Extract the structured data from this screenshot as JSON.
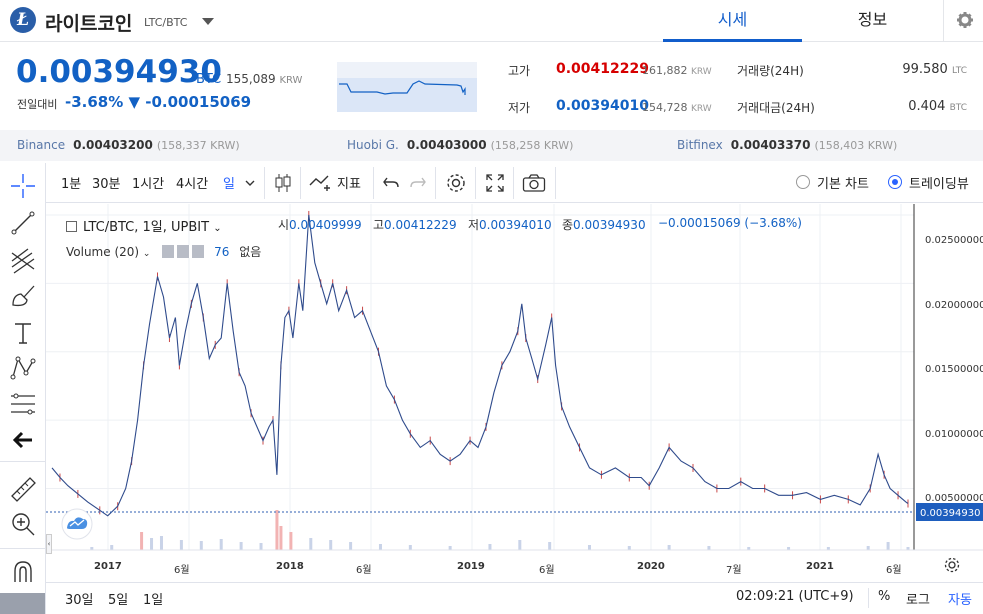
{
  "header": {
    "coin_name": "라이트코인",
    "pair": "LTC/BTC",
    "tabs": [
      {
        "label": "시세"
      },
      {
        "label": "정보"
      }
    ]
  },
  "price": {
    "current": "0.00394930",
    "unit": "BTC",
    "krw_value": "155,089",
    "krw_unit": "KRW",
    "change_label": "전일대비",
    "change_pct": "-3.68%",
    "change_abs": "▼ -0.00015069"
  },
  "stats": {
    "high_label": "고가",
    "high_value": "0.00412229",
    "high_krw": "161,882",
    "low_label": "저가",
    "low_value": "0.00394010",
    "low_krw": "154,728",
    "krw_unit": "KRW",
    "volume_label": "거래량(24H)",
    "volume_value": "99.580",
    "volume_unit": "LTC",
    "amount_label": "거래대금(24H)",
    "amount_value": "0.404",
    "amount_unit": "BTC"
  },
  "exchanges": [
    {
      "name": "Binance",
      "price": "0.00403200",
      "krw": "(158,337 KRW)"
    },
    {
      "name": "Huobi G.",
      "price": "0.00403000",
      "krw": "(158,258 KRW)"
    },
    {
      "name": "Bitfinex",
      "price": "0.00403370",
      "krw": "(158,403 KRW)"
    }
  ],
  "toolbar": {
    "intervals": [
      "1분",
      "30분",
      "1시간",
      "4시간",
      "일"
    ],
    "indicators": "지표",
    "basic_chart": "기본 차트",
    "tradingview": "트레이딩뷰",
    "selected_view": "트레이딩뷰"
  },
  "legend": {
    "symbol": "LTC/BTC, 1일, UPBIT",
    "o_label": "시",
    "o": "0.00409999",
    "h_label": "고",
    "h": "0.00412229",
    "l_label": "저",
    "l": "0.00394010",
    "c_label": "종",
    "c": "0.00394930",
    "chg": "−0.00015069 (−3.68%)",
    "volume_label": "Volume (20)",
    "volume_value": "76",
    "volume_none": "없음"
  },
  "chart_data": {
    "type": "line",
    "title": "",
    "y_ticks": [
      "0.02500000",
      "0.02000000",
      "0.01500000",
      "0.01000000",
      "0.00500000"
    ],
    "last_price_label": "0.00394930",
    "x_ticks": [
      "2017",
      "6월",
      "2018",
      "6월",
      "2019",
      "6월",
      "2020",
      "7월",
      "2021",
      "6월"
    ],
    "ylim": [
      0.0005,
      0.0258
    ],
    "series": [
      {
        "values": [
          [
            0,
            0.0065
          ],
          [
            8,
            0.0058
          ],
          [
            16,
            0.0052
          ],
          [
            26,
            0.0046
          ],
          [
            36,
            0.004
          ],
          [
            48,
            0.0034
          ],
          [
            56,
            0.003
          ],
          [
            66,
            0.0037
          ],
          [
            74,
            0.005
          ],
          [
            80,
            0.007
          ],
          [
            86,
            0.01
          ],
          [
            92,
            0.014
          ],
          [
            98,
            0.017
          ],
          [
            106,
            0.0205
          ],
          [
            112,
            0.019
          ],
          [
            118,
            0.016
          ],
          [
            124,
            0.0175
          ],
          [
            128,
            0.014
          ],
          [
            134,
            0.0165
          ],
          [
            140,
            0.0185
          ],
          [
            146,
            0.02
          ],
          [
            152,
            0.0175
          ],
          [
            158,
            0.0145
          ],
          [
            164,
            0.0155
          ],
          [
            170,
            0.016
          ],
          [
            176,
            0.02
          ],
          [
            182,
            0.0165
          ],
          [
            188,
            0.0135
          ],
          [
            194,
            0.0125
          ],
          [
            200,
            0.0105
          ],
          [
            206,
            0.0095
          ],
          [
            212,
            0.0085
          ],
          [
            218,
            0.0095
          ],
          [
            222,
            0.01
          ],
          [
            226,
            0.006
          ],
          [
            230,
            0.014
          ],
          [
            234,
            0.0175
          ],
          [
            238,
            0.018
          ],
          [
            242,
            0.016
          ],
          [
            248,
            0.02
          ],
          [
            252,
            0.018
          ],
          [
            258,
            0.025
          ],
          [
            264,
            0.0215
          ],
          [
            270,
            0.02
          ],
          [
            276,
            0.0185
          ],
          [
            282,
            0.02
          ],
          [
            288,
            0.018
          ],
          [
            296,
            0.0195
          ],
          [
            304,
            0.0175
          ],
          [
            312,
            0.018
          ],
          [
            320,
            0.0165
          ],
          [
            328,
            0.015
          ],
          [
            336,
            0.0125
          ],
          [
            344,
            0.0115
          ],
          [
            352,
            0.01
          ],
          [
            360,
            0.009
          ],
          [
            370,
            0.008
          ],
          [
            380,
            0.0085
          ],
          [
            390,
            0.0075
          ],
          [
            400,
            0.007
          ],
          [
            410,
            0.0075
          ],
          [
            420,
            0.0085
          ],
          [
            428,
            0.008
          ],
          [
            436,
            0.0095
          ],
          [
            444,
            0.012
          ],
          [
            452,
            0.014
          ],
          [
            460,
            0.015
          ],
          [
            468,
            0.0165
          ],
          [
            472,
            0.0185
          ],
          [
            476,
            0.016
          ],
          [
            482,
            0.0145
          ],
          [
            488,
            0.013
          ],
          [
            496,
            0.0155
          ],
          [
            502,
            0.0175
          ],
          [
            506,
            0.014
          ],
          [
            512,
            0.011
          ],
          [
            520,
            0.0095
          ],
          [
            530,
            0.008
          ],
          [
            540,
            0.0065
          ],
          [
            552,
            0.006
          ],
          [
            566,
            0.0065
          ],
          [
            580,
            0.0058
          ],
          [
            592,
            0.0058
          ],
          [
            600,
            0.0052
          ],
          [
            610,
            0.0065
          ],
          [
            620,
            0.008
          ],
          [
            632,
            0.007
          ],
          [
            644,
            0.0065
          ],
          [
            656,
            0.0055
          ],
          [
            668,
            0.005
          ],
          [
            680,
            0.005
          ],
          [
            692,
            0.0055
          ],
          [
            704,
            0.005
          ],
          [
            716,
            0.005
          ],
          [
            730,
            0.0045
          ],
          [
            744,
            0.0045
          ],
          [
            758,
            0.0047
          ],
          [
            772,
            0.0042
          ],
          [
            786,
            0.0045
          ],
          [
            800,
            0.0042
          ],
          [
            812,
            0.0038
          ],
          [
            822,
            0.005
          ],
          [
            830,
            0.0075
          ],
          [
            836,
            0.006
          ],
          [
            842,
            0.005
          ],
          [
            850,
            0.0045
          ],
          [
            858,
            0.004
          ],
          [
            860,
            0.0039
          ]
        ]
      }
    ],
    "volume": [
      [
        40,
        3
      ],
      [
        60,
        5
      ],
      [
        90,
        18
      ],
      [
        100,
        12
      ],
      [
        110,
        14
      ],
      [
        130,
        10
      ],
      [
        150,
        9
      ],
      [
        170,
        11
      ],
      [
        190,
        8
      ],
      [
        210,
        7
      ],
      [
        226,
        40
      ],
      [
        230,
        24
      ],
      [
        240,
        18
      ],
      [
        260,
        12
      ],
      [
        280,
        10
      ],
      [
        300,
        8
      ],
      [
        330,
        6
      ],
      [
        360,
        5
      ],
      [
        400,
        4
      ],
      [
        440,
        6
      ],
      [
        470,
        10
      ],
      [
        500,
        8
      ],
      [
        540,
        5
      ],
      [
        580,
        4
      ],
      [
        620,
        5
      ],
      [
        660,
        4
      ],
      [
        700,
        3
      ],
      [
        740,
        3
      ],
      [
        780,
        3
      ],
      [
        820,
        4
      ],
      [
        840,
        8
      ],
      [
        860,
        3
      ]
    ]
  },
  "bottom": {
    "ranges": [
      "30일",
      "5일",
      "1일"
    ],
    "time": "02:09:21 (UTC+9)",
    "percent": "%",
    "log": "로그",
    "auto": "자동"
  }
}
